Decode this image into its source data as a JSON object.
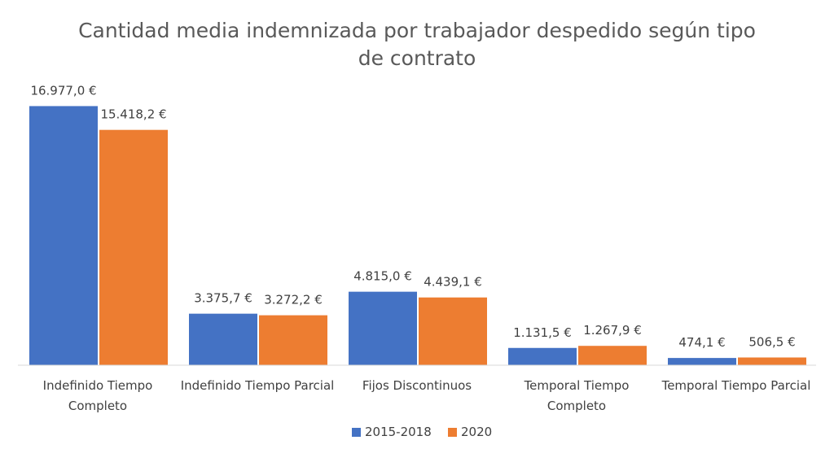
{
  "chart_data": {
    "type": "bar",
    "title": "Cantidad media indemnizada por trabajador despedido según tipo de contrato",
    "title_lines": [
      "Cantidad media indemnizada por trabajador despedido según tipo",
      "de contrato"
    ],
    "categories": [
      [
        "Indefinido Tiempo",
        "Completo"
      ],
      [
        "Indefinido Tiempo Parcial"
      ],
      [
        "Fijos Discontinuos"
      ],
      [
        "Temporal Tiempo",
        "Completo"
      ],
      [
        "Temporal Tiempo Parcial"
      ]
    ],
    "series": [
      {
        "name": "2015-2018",
        "color": "#4472C4",
        "values": [
          16977.0,
          3375.7,
          4815.0,
          1131.5,
          474.1
        ],
        "labels": [
          "16.977,0 €",
          "3.375,7 €",
          "4.815,0 €",
          "1.131,5 €",
          "474,1 €"
        ]
      },
      {
        "name": "2020",
        "color": "#ED7D31",
        "values": [
          15418.2,
          3272.2,
          4439.1,
          1267.9,
          506.5
        ],
        "labels": [
          "15.418,2 €",
          "3.272,2 €",
          "4.439,1 €",
          "1.267,9 €",
          "506,5 €"
        ]
      }
    ],
    "ylim": [
      0,
      17000
    ],
    "xlabel": "",
    "ylabel": "",
    "grid": false,
    "legend_position": "bottom",
    "axis_color": "#D9D9D9"
  }
}
